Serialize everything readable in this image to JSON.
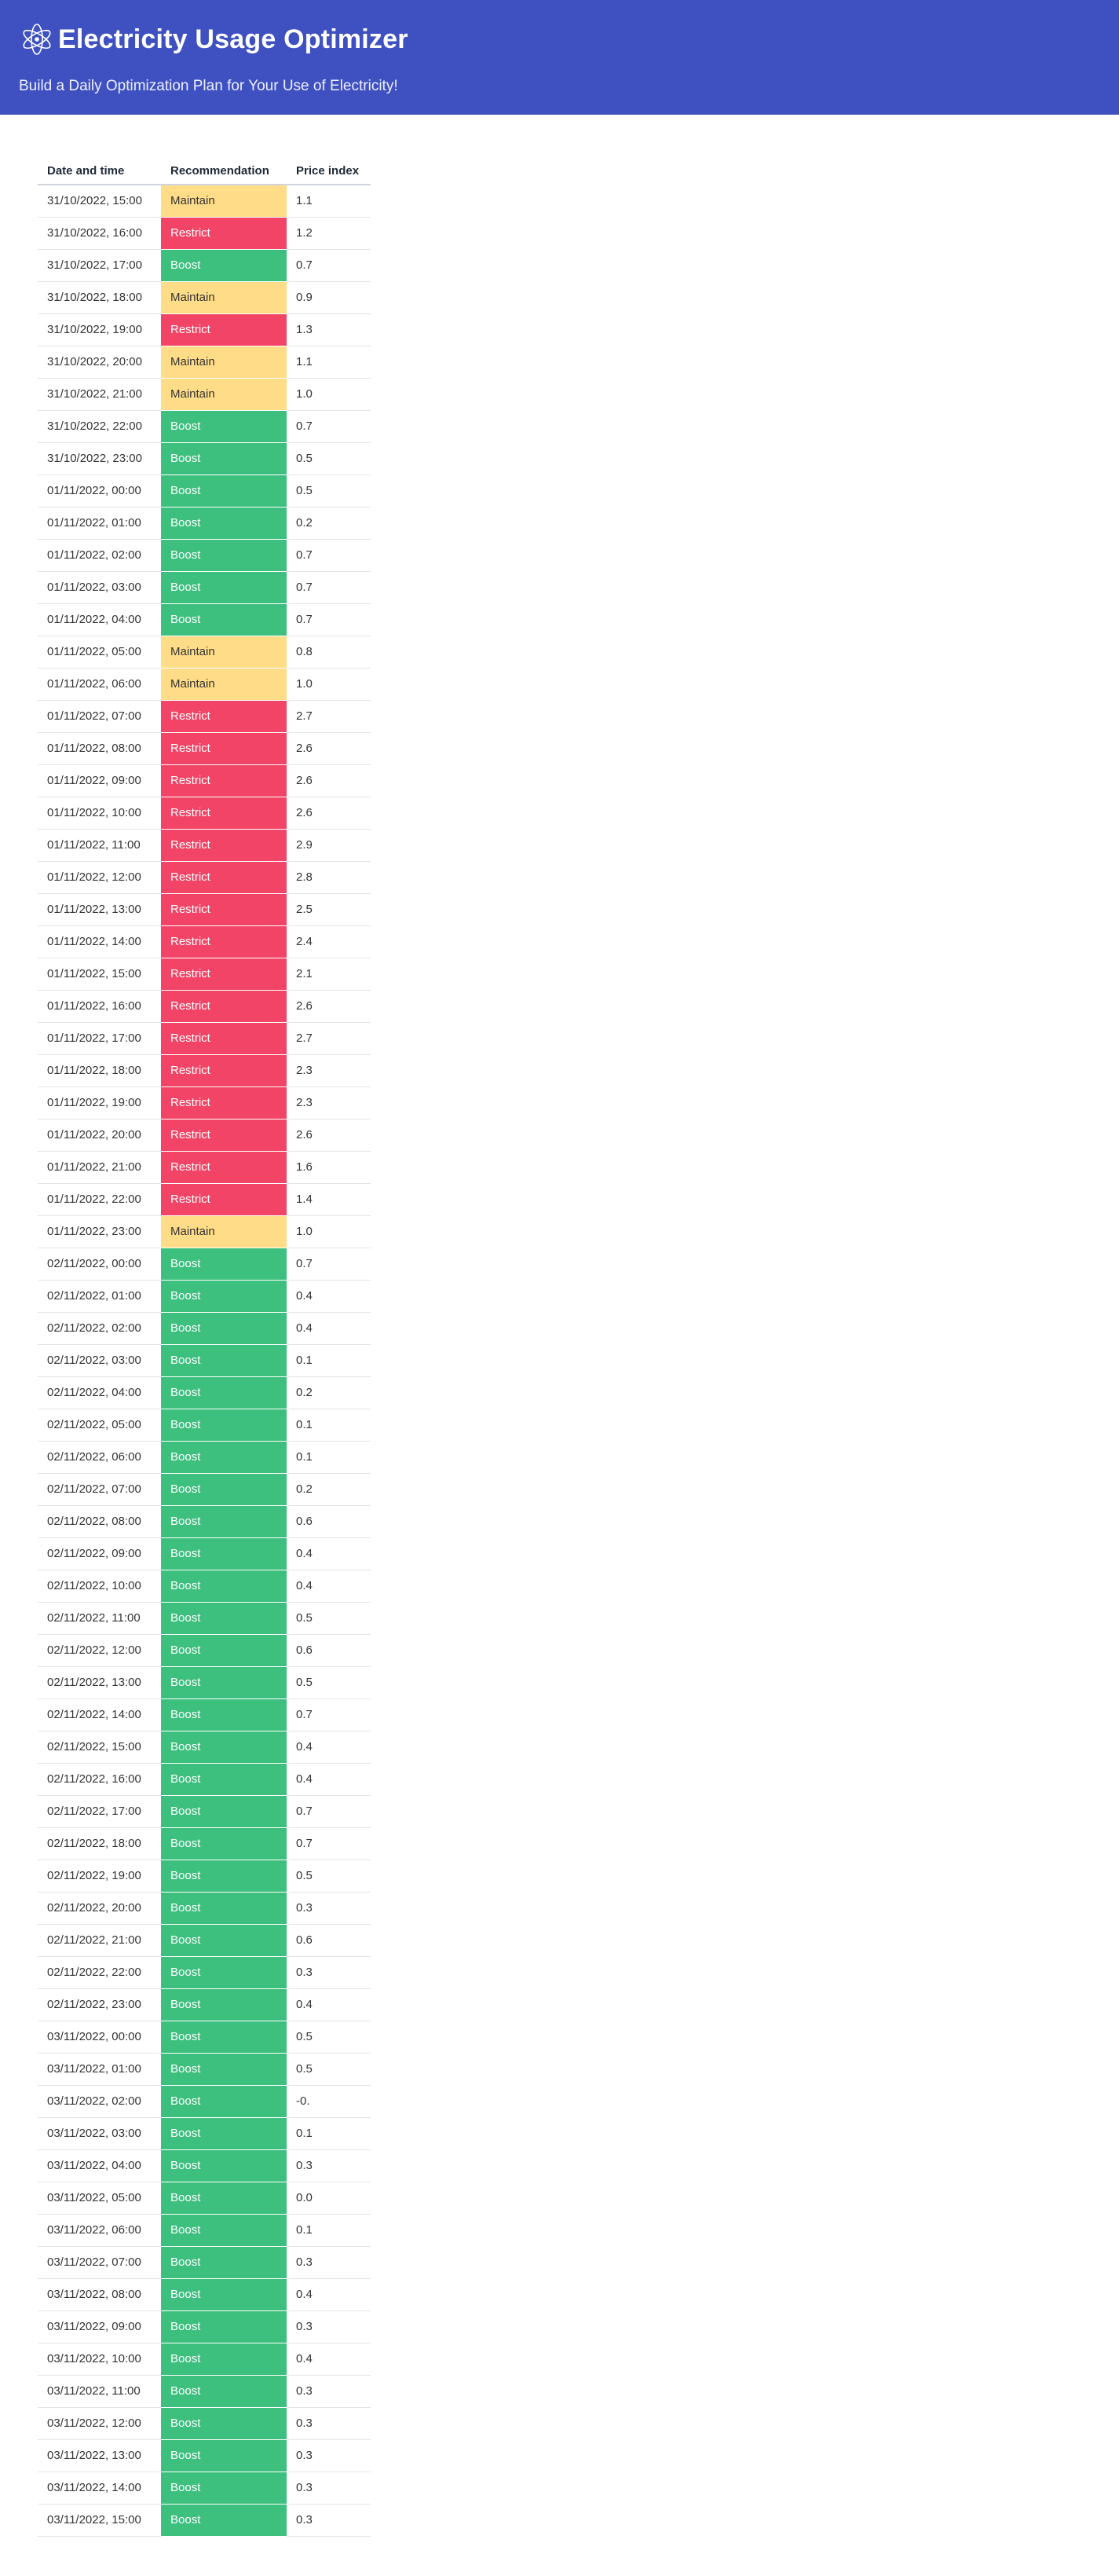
{
  "header": {
    "logo_icon": "atom-icon",
    "title": "Electricity Usage Optimizer",
    "subtitle": "Build a Daily Optimization Plan for Your Use of Electricity!"
  },
  "colors": {
    "header_bg": "#3f51c0",
    "boost": "#3dbf7e",
    "restrict": "#f14466",
    "maintain": "#ffdd88"
  },
  "table": {
    "columns": [
      "Date and time",
      "Recommendation",
      "Price index"
    ],
    "rows": [
      [
        "31/10/2022, 15:00",
        "Maintain",
        "1.1"
      ],
      [
        "31/10/2022, 16:00",
        "Restrict",
        "1.2"
      ],
      [
        "31/10/2022, 17:00",
        "Boost",
        "0.7"
      ],
      [
        "31/10/2022, 18:00",
        "Maintain",
        "0.9"
      ],
      [
        "31/10/2022, 19:00",
        "Restrict",
        "1.3"
      ],
      [
        "31/10/2022, 20:00",
        "Maintain",
        "1.1"
      ],
      [
        "31/10/2022, 21:00",
        "Maintain",
        "1.0"
      ],
      [
        "31/10/2022, 22:00",
        "Boost",
        "0.7"
      ],
      [
        "31/10/2022, 23:00",
        "Boost",
        "0.5"
      ],
      [
        "01/11/2022, 00:00",
        "Boost",
        "0.5"
      ],
      [
        "01/11/2022, 01:00",
        "Boost",
        "0.2"
      ],
      [
        "01/11/2022, 02:00",
        "Boost",
        "0.7"
      ],
      [
        "01/11/2022, 03:00",
        "Boost",
        "0.7"
      ],
      [
        "01/11/2022, 04:00",
        "Boost",
        "0.7"
      ],
      [
        "01/11/2022, 05:00",
        "Maintain",
        "0.8"
      ],
      [
        "01/11/2022, 06:00",
        "Maintain",
        "1.0"
      ],
      [
        "01/11/2022, 07:00",
        "Restrict",
        "2.7"
      ],
      [
        "01/11/2022, 08:00",
        "Restrict",
        "2.6"
      ],
      [
        "01/11/2022, 09:00",
        "Restrict",
        "2.6"
      ],
      [
        "01/11/2022, 10:00",
        "Restrict",
        "2.6"
      ],
      [
        "01/11/2022, 11:00",
        "Restrict",
        "2.9"
      ],
      [
        "01/11/2022, 12:00",
        "Restrict",
        "2.8"
      ],
      [
        "01/11/2022, 13:00",
        "Restrict",
        "2.5"
      ],
      [
        "01/11/2022, 14:00",
        "Restrict",
        "2.4"
      ],
      [
        "01/11/2022, 15:00",
        "Restrict",
        "2.1"
      ],
      [
        "01/11/2022, 16:00",
        "Restrict",
        "2.6"
      ],
      [
        "01/11/2022, 17:00",
        "Restrict",
        "2.7"
      ],
      [
        "01/11/2022, 18:00",
        "Restrict",
        "2.3"
      ],
      [
        "01/11/2022, 19:00",
        "Restrict",
        "2.3"
      ],
      [
        "01/11/2022, 20:00",
        "Restrict",
        "2.6"
      ],
      [
        "01/11/2022, 21:00",
        "Restrict",
        "1.6"
      ],
      [
        "01/11/2022, 22:00",
        "Restrict",
        "1.4"
      ],
      [
        "01/11/2022, 23:00",
        "Maintain",
        "1.0"
      ],
      [
        "02/11/2022, 00:00",
        "Boost",
        "0.7"
      ],
      [
        "02/11/2022, 01:00",
        "Boost",
        "0.4"
      ],
      [
        "02/11/2022, 02:00",
        "Boost",
        "0.4"
      ],
      [
        "02/11/2022, 03:00",
        "Boost",
        "0.1"
      ],
      [
        "02/11/2022, 04:00",
        "Boost",
        "0.2"
      ],
      [
        "02/11/2022, 05:00",
        "Boost",
        "0.1"
      ],
      [
        "02/11/2022, 06:00",
        "Boost",
        "0.1"
      ],
      [
        "02/11/2022, 07:00",
        "Boost",
        "0.2"
      ],
      [
        "02/11/2022, 08:00",
        "Boost",
        "0.6"
      ],
      [
        "02/11/2022, 09:00",
        "Boost",
        "0.4"
      ],
      [
        "02/11/2022, 10:00",
        "Boost",
        "0.4"
      ],
      [
        "02/11/2022, 11:00",
        "Boost",
        "0.5"
      ],
      [
        "02/11/2022, 12:00",
        "Boost",
        "0.6"
      ],
      [
        "02/11/2022, 13:00",
        "Boost",
        "0.5"
      ],
      [
        "02/11/2022, 14:00",
        "Boost",
        "0.7"
      ],
      [
        "02/11/2022, 15:00",
        "Boost",
        "0.4"
      ],
      [
        "02/11/2022, 16:00",
        "Boost",
        "0.4"
      ],
      [
        "02/11/2022, 17:00",
        "Boost",
        "0.7"
      ],
      [
        "02/11/2022, 18:00",
        "Boost",
        "0.7"
      ],
      [
        "02/11/2022, 19:00",
        "Boost",
        "0.5"
      ],
      [
        "02/11/2022, 20:00",
        "Boost",
        "0.3"
      ],
      [
        "02/11/2022, 21:00",
        "Boost",
        "0.6"
      ],
      [
        "02/11/2022, 22:00",
        "Boost",
        "0.3"
      ],
      [
        "02/11/2022, 23:00",
        "Boost",
        "0.4"
      ],
      [
        "03/11/2022, 00:00",
        "Boost",
        "0.5"
      ],
      [
        "03/11/2022, 01:00",
        "Boost",
        "0.5"
      ],
      [
        "03/11/2022, 02:00",
        "Boost",
        "-0."
      ],
      [
        "03/11/2022, 03:00",
        "Boost",
        "0.1"
      ],
      [
        "03/11/2022, 04:00",
        "Boost",
        "0.3"
      ],
      [
        "03/11/2022, 05:00",
        "Boost",
        "0.0"
      ],
      [
        "03/11/2022, 06:00",
        "Boost",
        "0.1"
      ],
      [
        "03/11/2022, 07:00",
        "Boost",
        "0.3"
      ],
      [
        "03/11/2022, 08:00",
        "Boost",
        "0.4"
      ],
      [
        "03/11/2022, 09:00",
        "Boost",
        "0.3"
      ],
      [
        "03/11/2022, 10:00",
        "Boost",
        "0.4"
      ],
      [
        "03/11/2022, 11:00",
        "Boost",
        "0.3"
      ],
      [
        "03/11/2022, 12:00",
        "Boost",
        "0.3"
      ],
      [
        "03/11/2022, 13:00",
        "Boost",
        "0.3"
      ],
      [
        "03/11/2022, 14:00",
        "Boost",
        "0.3"
      ],
      [
        "03/11/2022, 15:00",
        "Boost",
        "0.3"
      ]
    ]
  }
}
